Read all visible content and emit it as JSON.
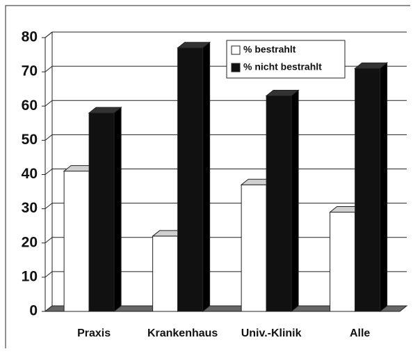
{
  "chart_data": {
    "type": "bar3d",
    "categories": [
      "Praxis",
      "Krankenhaus",
      "Univ.-Klinik",
      "Alle"
    ],
    "series": [
      {
        "name": "% bestrahlt",
        "color": "#ffffff",
        "values": [
          41,
          22,
          37,
          29
        ]
      },
      {
        "name": "% nicht bestrahlt",
        "color": "#111111",
        "values": [
          58,
          77,
          63,
          71
        ]
      }
    ],
    "ylim": [
      0,
      80
    ],
    "yticks": [
      0,
      10,
      20,
      30,
      40,
      50,
      60,
      70,
      80
    ],
    "grid": true,
    "legend": "top-right"
  }
}
